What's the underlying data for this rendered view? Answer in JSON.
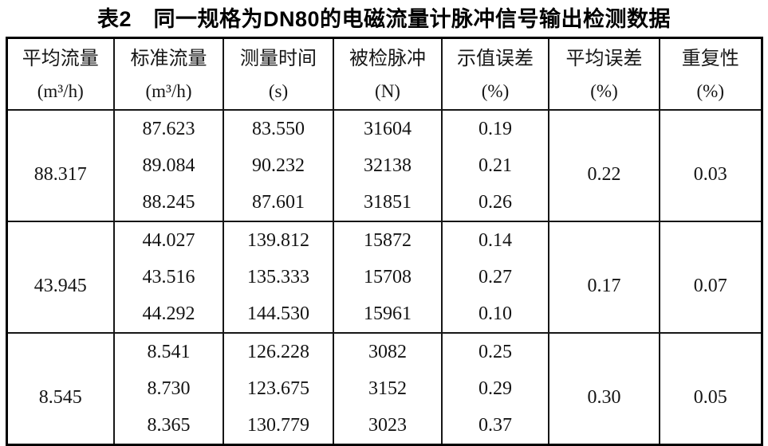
{
  "title": "表2　同一规格为DN80的电磁流量计脉冲信号输出检测数据",
  "table": {
    "columns": [
      {
        "name": "平均流量",
        "unit": "(m³/h)"
      },
      {
        "name": "标准流量",
        "unit": "(m³/h)"
      },
      {
        "name": "测量时间",
        "unit": "(s)"
      },
      {
        "name": "被检脉冲",
        "unit": "(N)"
      },
      {
        "name": "示值误差",
        "unit": "(%)"
      },
      {
        "name": "平均误差",
        "unit": "(%)"
      },
      {
        "name": "重复性",
        "unit": "(%)"
      }
    ],
    "groups": [
      {
        "avg_flow": "88.317",
        "rows": [
          {
            "std_flow": "87.623",
            "time": "83.550",
            "pulses": "31604",
            "error": "0.19"
          },
          {
            "std_flow": "89.084",
            "time": "90.232",
            "pulses": "32138",
            "error": "0.21"
          },
          {
            "std_flow": "88.245",
            "time": "87.601",
            "pulses": "31851",
            "error": "0.26"
          }
        ],
        "avg_error": "0.22",
        "repeatability": "0.03"
      },
      {
        "avg_flow": "43.945",
        "rows": [
          {
            "std_flow": "44.027",
            "time": "139.812",
            "pulses": "15872",
            "error": "0.14"
          },
          {
            "std_flow": "43.516",
            "time": "135.333",
            "pulses": "15708",
            "error": "0.27"
          },
          {
            "std_flow": "44.292",
            "time": "144.530",
            "pulses": "15961",
            "error": "0.10"
          }
        ],
        "avg_error": "0.17",
        "repeatability": "0.07"
      },
      {
        "avg_flow": "8.545",
        "rows": [
          {
            "std_flow": "8.541",
            "time": "126.228",
            "pulses": "3082",
            "error": "0.25"
          },
          {
            "std_flow": "8.730",
            "time": "123.675",
            "pulses": "3152",
            "error": "0.29"
          },
          {
            "std_flow": "8.365",
            "time": "130.779",
            "pulses": "3023",
            "error": "0.37"
          }
        ],
        "avg_error": "0.30",
        "repeatability": "0.05"
      }
    ]
  }
}
